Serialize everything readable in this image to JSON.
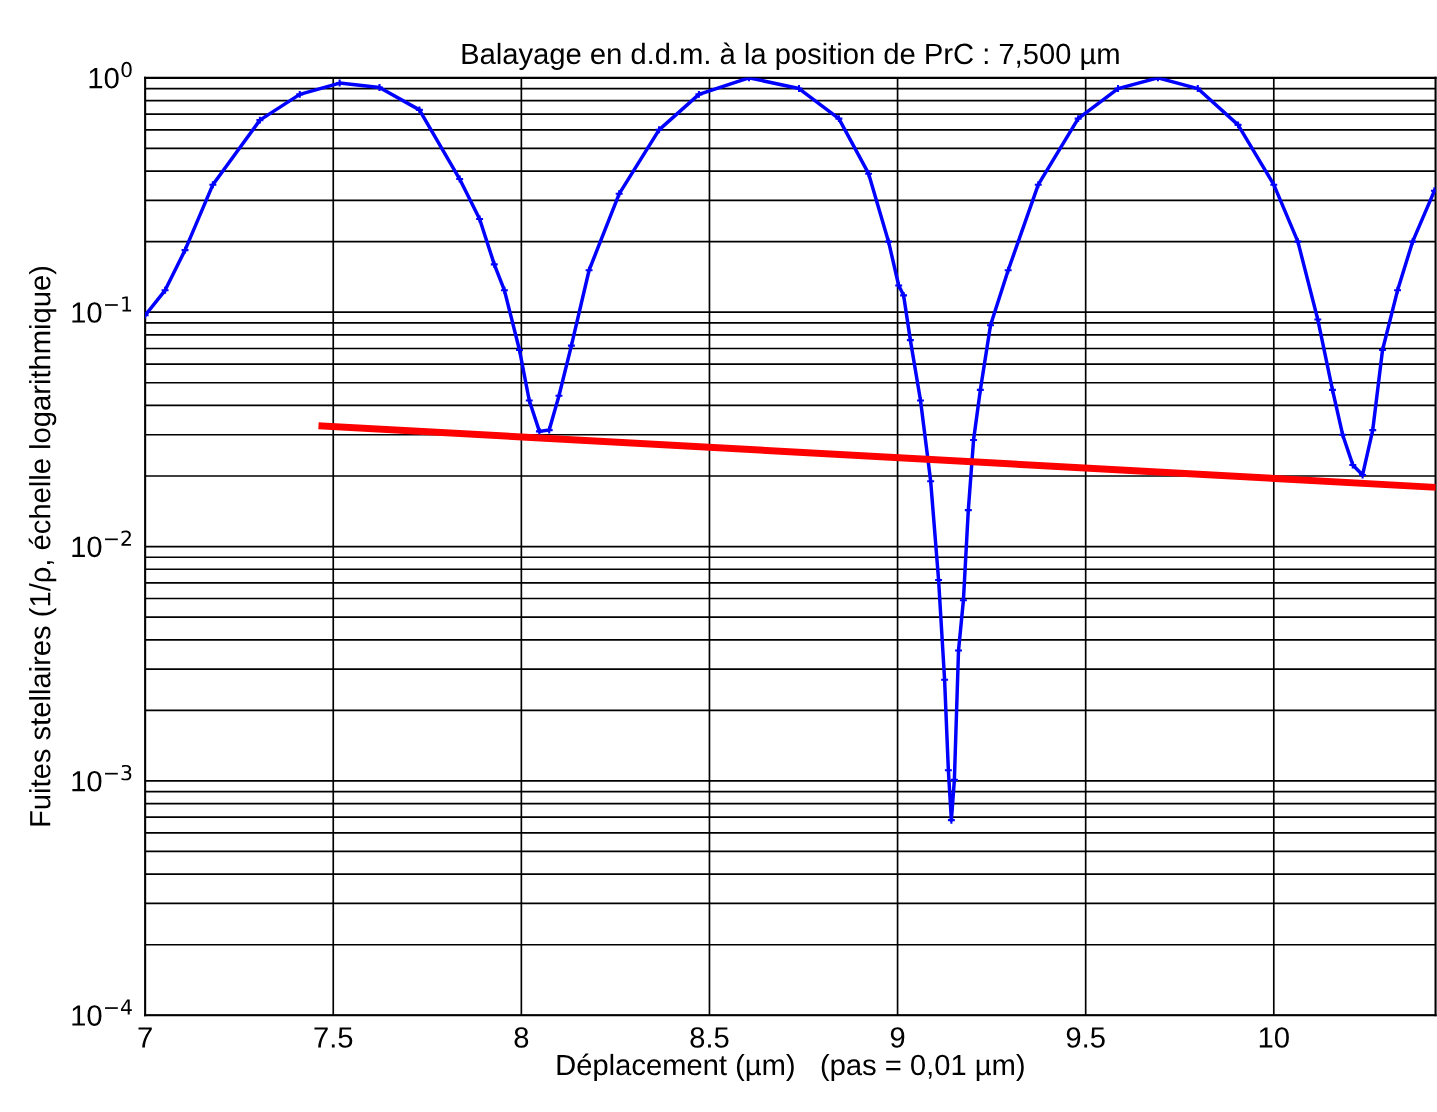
{
  "chart_data": {
    "type": "line",
    "title": "Balayage en d.d.m. à la position de PrC : 7,500 µm",
    "xlabel": "Déplacement (µm)   (pas = 0,01 µm)",
    "ylabel": "Fuites stellaires (1/ρ, échelle logarithmique)",
    "log": "y",
    "grid": true,
    "legend": false,
    "xlim": [
      7,
      10.43
    ],
    "xticks": [
      7,
      7.5,
      8,
      8.5,
      9,
      9.5,
      10
    ],
    "ylim": [
      0.0001,
      1
    ],
    "yticks": [
      {
        "value": 0.0001,
        "label": "10$^{−4}$"
      },
      {
        "value": 0.0002,
        "label": null
      },
      {
        "value": 0.0003,
        "label": null
      },
      {
        "value": 0.0004,
        "label": null
      },
      {
        "value": 0.0005,
        "label": null
      },
      {
        "value": 0.0006,
        "label": null
      },
      {
        "value": 0.0007,
        "label": null
      },
      {
        "value": 0.0008,
        "label": null
      },
      {
        "value": 0.0009,
        "label": null
      },
      {
        "value": 0.001,
        "label": "10$^{−3}$"
      },
      {
        "value": 0.002,
        "label": null
      },
      {
        "value": 0.003,
        "label": null
      },
      {
        "value": 0.004,
        "label": null
      },
      {
        "value": 0.005,
        "label": null
      },
      {
        "value": 0.006,
        "label": null
      },
      {
        "value": 0.007,
        "label": null
      },
      {
        "value": 0.008,
        "label": null
      },
      {
        "value": 0.009,
        "label": null
      },
      {
        "value": 0.01,
        "label": "10$^{−2}$"
      },
      {
        "value": 0.02,
        "label": null
      },
      {
        "value": 0.03,
        "label": null
      },
      {
        "value": 0.04,
        "label": null
      },
      {
        "value": 0.05,
        "label": null
      },
      {
        "value": 0.06,
        "label": null
      },
      {
        "value": 0.07,
        "label": null
      },
      {
        "value": 0.08,
        "label": null
      },
      {
        "value": 0.09,
        "label": null
      },
      {
        "value": 0.1,
        "label": "10$^{−1}$"
      },
      {
        "value": 0.2,
        "label": null
      },
      {
        "value": 0.3,
        "label": null
      },
      {
        "value": 0.4,
        "label": null
      },
      {
        "value": 0.5,
        "label": null
      },
      {
        "value": 0.6,
        "label": null
      },
      {
        "value": 0.7,
        "label": null
      },
      {
        "value": 0.8,
        "label": null
      },
      {
        "value": 0.9,
        "label": null
      },
      {
        "value": 1,
        "label": "10$^{0}$"
      }
    ],
    "series": [
      {
        "color": "#0000ff",
        "marker": "cross",
        "x": [
          7.0,
          7.053,
          7.106,
          7.18,
          7.305,
          7.411,
          7.517,
          7.623,
          7.729,
          7.836,
          7.889,
          7.928,
          7.955,
          7.995,
          8.021,
          8.048,
          8.074,
          8.1,
          8.133,
          8.18,
          8.26,
          8.366,
          8.472,
          8.605,
          8.738,
          8.844,
          8.923,
          8.976,
          9.003,
          9.016,
          9.034,
          9.061,
          9.088,
          9.109,
          9.125,
          9.135,
          9.143,
          9.151,
          9.162,
          9.175,
          9.188,
          9.202,
          9.22,
          9.247,
          9.294,
          9.374,
          9.48,
          9.586,
          9.692,
          9.798,
          9.905,
          10.0,
          10.064,
          10.117,
          10.156,
          10.183,
          10.21,
          10.236,
          10.263,
          10.289,
          10.329,
          10.369,
          10.427
        ],
        "values": [
          0.097,
          0.124,
          0.184,
          0.35,
          0.66,
          0.85,
          0.95,
          0.91,
          0.73,
          0.37,
          0.25,
          0.16,
          0.124,
          0.069,
          0.042,
          0.031,
          0.0314,
          0.044,
          0.072,
          0.151,
          0.32,
          0.6,
          0.85,
          1.0,
          0.9,
          0.67,
          0.39,
          0.2,
          0.13,
          0.118,
          0.076,
          0.042,
          0.019,
          0.0072,
          0.0027,
          0.00111,
          0.00068,
          0.00101,
          0.0036,
          0.0059,
          0.0143,
          0.0285,
          0.0466,
          0.088,
          0.151,
          0.35,
          0.67,
          0.9,
          1.0,
          0.9,
          0.63,
          0.35,
          0.2,
          0.093,
          0.0466,
          0.03,
          0.0223,
          0.0202,
          0.0314,
          0.069,
          0.124,
          0.2,
          0.33
        ]
      },
      {
        "color": "#ff0000",
        "marker": "none",
        "x": [
          7.47,
          10.427
        ],
        "values": [
          0.0327,
          0.0179
        ]
      }
    ]
  }
}
